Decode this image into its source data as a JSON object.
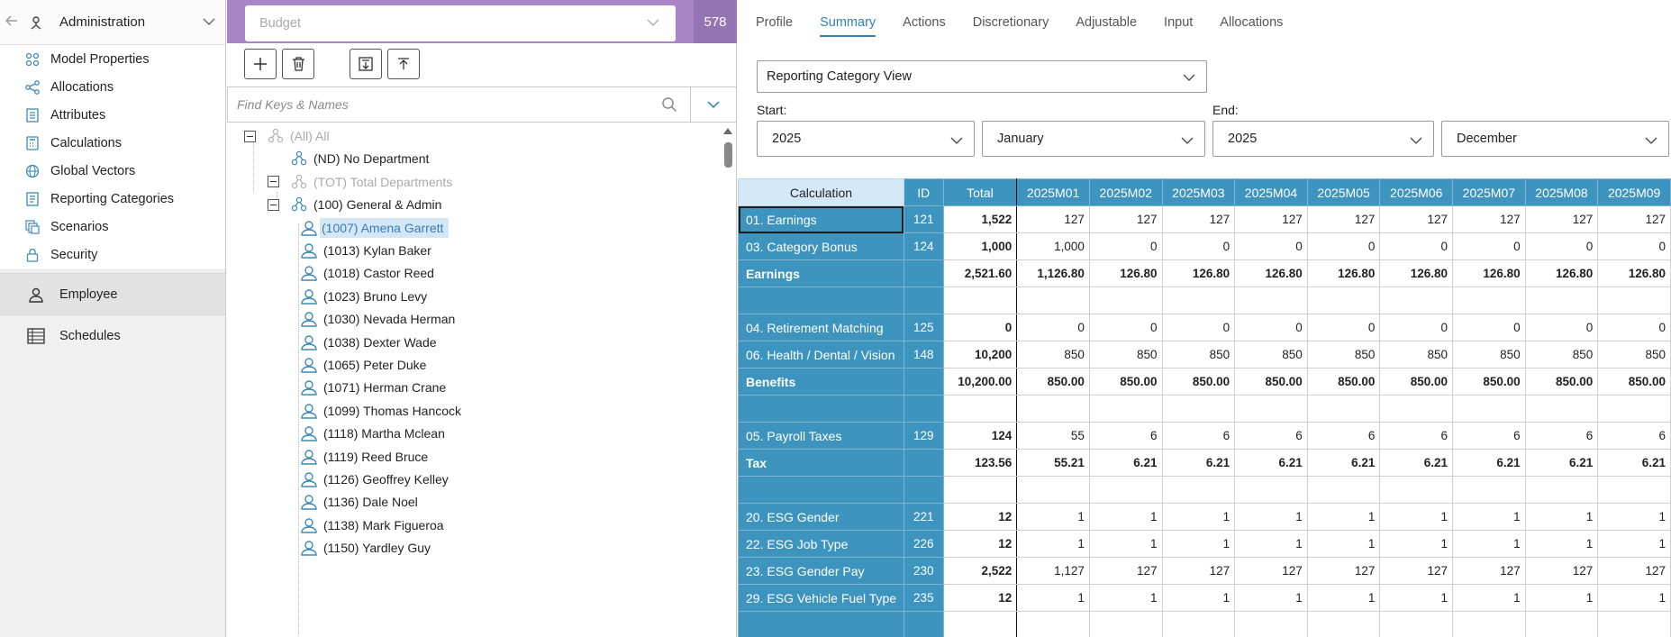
{
  "nav": {
    "header": {
      "label": "Administration"
    },
    "sub_items": [
      {
        "label": "Model Properties",
        "icon": "model-properties-icon"
      },
      {
        "label": "Allocations",
        "icon": "allocations-icon"
      },
      {
        "label": "Attributes",
        "icon": "attributes-icon"
      },
      {
        "label": "Calculations",
        "icon": "calculations-icon"
      },
      {
        "label": "Global Vectors",
        "icon": "globe-icon"
      },
      {
        "label": "Reporting Categories",
        "icon": "reporting-categories-icon"
      },
      {
        "label": "Scenarios",
        "icon": "scenarios-icon"
      },
      {
        "label": "Security",
        "icon": "lock-icon"
      }
    ],
    "sections": [
      {
        "label": "Employee",
        "icon": "person-icon",
        "selected": true
      },
      {
        "label": "Schedules",
        "icon": "schedule-icon",
        "selected": false
      }
    ]
  },
  "tree_panel": {
    "budget": {
      "placeholder": "Budget",
      "count": "578"
    },
    "search": {
      "placeholder": "Find Keys & Names"
    },
    "nodes": [
      {
        "label": "(All) All",
        "type": "group",
        "depth": 0,
        "collapsible": true,
        "dim": true
      },
      {
        "label": "(ND) No Department",
        "type": "group",
        "depth": 1,
        "collapsible": false,
        "dim": false
      },
      {
        "label": "(TOT) Total Departments",
        "type": "group",
        "depth": 1,
        "collapsible": true,
        "dim": true
      },
      {
        "label": "(100) General & Admin",
        "type": "group",
        "depth": 2,
        "collapsible": true,
        "dim": false
      },
      {
        "label": "(1007) Amena Garrett",
        "type": "person",
        "depth": 3,
        "selected": true
      },
      {
        "label": "(1013) Kylan Baker",
        "type": "person",
        "depth": 3
      },
      {
        "label": "(1018) Castor Reed",
        "type": "person",
        "depth": 3
      },
      {
        "label": "(1023) Bruno Levy",
        "type": "person",
        "depth": 3
      },
      {
        "label": "(1030) Nevada Herman",
        "type": "person",
        "depth": 3
      },
      {
        "label": "(1038) Dexter Wade",
        "type": "person",
        "depth": 3
      },
      {
        "label": "(1065) Peter Duke",
        "type": "person",
        "depth": 3
      },
      {
        "label": "(1071) Herman Crane",
        "type": "person",
        "depth": 3
      },
      {
        "label": "(1099) Thomas Hancock",
        "type": "person",
        "depth": 3
      },
      {
        "label": "(1118) Martha Mclean",
        "type": "person",
        "depth": 3
      },
      {
        "label": "(1119) Reed Bruce",
        "type": "person",
        "depth": 3
      },
      {
        "label": "(1126) Geoffrey Kelley",
        "type": "person",
        "depth": 3
      },
      {
        "label": "(1136) Dale Noel",
        "type": "person",
        "depth": 3
      },
      {
        "label": "(1138) Mark Figueroa",
        "type": "person",
        "depth": 3
      },
      {
        "label": "(1150) Yardley Guy",
        "type": "person",
        "depth": 3
      }
    ]
  },
  "main": {
    "tabs": [
      {
        "label": "Profile",
        "active": false
      },
      {
        "label": "Summary",
        "active": true
      },
      {
        "label": "Actions",
        "active": false
      },
      {
        "label": "Discretionary",
        "active": false
      },
      {
        "label": "Adjustable",
        "active": false
      },
      {
        "label": "Input",
        "active": false
      },
      {
        "label": "Allocations",
        "active": false
      }
    ],
    "view_select": "Reporting Category View",
    "start": {
      "label": "Start:",
      "year": "2025",
      "month": "January"
    },
    "end": {
      "label": "End:",
      "year": "2025",
      "month": "December"
    },
    "table": {
      "headers": [
        "Calculation",
        "ID",
        "Total",
        "2025M01",
        "2025M02",
        "2025M03",
        "2025M04",
        "2025M05",
        "2025M06",
        "2025M07",
        "2025M08",
        "2025M09"
      ],
      "rows": [
        {
          "calc": "01. Earnings",
          "id": "121",
          "total": "1,522",
          "vals": [
            "127",
            "127",
            "127",
            "127",
            "127",
            "127",
            "127",
            "127",
            "127"
          ],
          "selected": true
        },
        {
          "calc": "03. Category Bonus",
          "id": "124",
          "total": "1,000",
          "vals": [
            "1,000",
            "0",
            "0",
            "0",
            "0",
            "0",
            "0",
            "0",
            "0"
          ]
        },
        {
          "calc": "Earnings",
          "id": "",
          "total": "2,521.60",
          "vals": [
            "1,126.80",
            "126.80",
            "126.80",
            "126.80",
            "126.80",
            "126.80",
            "126.80",
            "126.80",
            "126.80"
          ],
          "subtotal": true
        },
        {
          "calc": "",
          "id": "",
          "total": "",
          "vals": [
            "",
            "",
            "",
            "",
            "",
            "",
            "",
            "",
            ""
          ]
        },
        {
          "calc": "04. Retirement Matching",
          "id": "125",
          "total": "0",
          "vals": [
            "0",
            "0",
            "0",
            "0",
            "0",
            "0",
            "0",
            "0",
            "0"
          ]
        },
        {
          "calc": "06. Health / Dental / Vision",
          "id": "148",
          "total": "10,200",
          "vals": [
            "850",
            "850",
            "850",
            "850",
            "850",
            "850",
            "850",
            "850",
            "850"
          ]
        },
        {
          "calc": "Benefits",
          "id": "",
          "total": "10,200.00",
          "vals": [
            "850.00",
            "850.00",
            "850.00",
            "850.00",
            "850.00",
            "850.00",
            "850.00",
            "850.00",
            "850.00"
          ],
          "subtotal": true
        },
        {
          "calc": "",
          "id": "",
          "total": "",
          "vals": [
            "",
            "",
            "",
            "",
            "",
            "",
            "",
            "",
            ""
          ]
        },
        {
          "calc": "05. Payroll Taxes",
          "id": "129",
          "total": "124",
          "vals": [
            "55",
            "6",
            "6",
            "6",
            "6",
            "6",
            "6",
            "6",
            "6"
          ]
        },
        {
          "calc": "Tax",
          "id": "",
          "total": "123.56",
          "vals": [
            "55.21",
            "6.21",
            "6.21",
            "6.21",
            "6.21",
            "6.21",
            "6.21",
            "6.21",
            "6.21"
          ],
          "subtotal": true
        },
        {
          "calc": "",
          "id": "",
          "total": "",
          "vals": [
            "",
            "",
            "",
            "",
            "",
            "",
            "",
            "",
            ""
          ]
        },
        {
          "calc": "20. ESG Gender",
          "id": "221",
          "total": "12",
          "vals": [
            "1",
            "1",
            "1",
            "1",
            "1",
            "1",
            "1",
            "1",
            "1"
          ]
        },
        {
          "calc": "22. ESG Job Type",
          "id": "226",
          "total": "12",
          "vals": [
            "1",
            "1",
            "1",
            "1",
            "1",
            "1",
            "1",
            "1",
            "1"
          ]
        },
        {
          "calc": "23. ESG Gender Pay",
          "id": "230",
          "total": "2,522",
          "vals": [
            "1,127",
            "127",
            "127",
            "127",
            "127",
            "127",
            "127",
            "127",
            "127"
          ]
        },
        {
          "calc": "29. ESG Vehicle Fuel Type",
          "id": "235",
          "total": "12",
          "vals": [
            "1",
            "1",
            "1",
            "1",
            "1",
            "1",
            "1",
            "1",
            "1"
          ]
        },
        {
          "calc": "",
          "id": "",
          "total": "",
          "vals": [
            "",
            "",
            "",
            "",
            "",
            "",
            "",
            "",
            ""
          ]
        }
      ]
    }
  }
}
